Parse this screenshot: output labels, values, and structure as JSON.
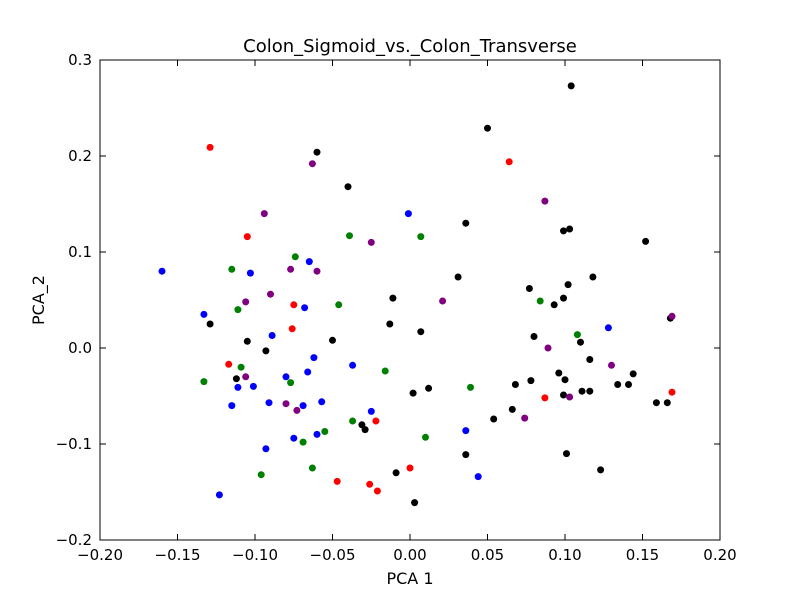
{
  "chart_data": {
    "type": "scatter",
    "title": "Colon_Sigmoid_vs._Colon_Transverse",
    "xlabel": "PCA 1",
    "ylabel": "PCA_2",
    "xlim": [
      -0.2,
      0.2
    ],
    "ylim": [
      -0.2,
      0.3
    ],
    "xticks": [
      "−0.20",
      "−0.15",
      "−0.10",
      "−0.05",
      "0.00",
      "0.05",
      "0.10",
      "0.15",
      "0.20"
    ],
    "xtick_values": [
      -0.2,
      -0.15,
      -0.1,
      -0.05,
      0.0,
      0.05,
      0.1,
      0.15,
      0.2
    ],
    "yticks": [
      "−0.2",
      "−0.1",
      "0.0",
      "0.1",
      "0.2",
      "0.3"
    ],
    "ytick_values": [
      -0.2,
      -0.1,
      0.0,
      0.1,
      0.2,
      0.3
    ],
    "grid": false,
    "series": [
      {
        "color": "#000000",
        "points": [
          [
            0.104,
            0.273
          ],
          [
            0.05,
            0.229
          ],
          [
            -0.06,
            0.204
          ],
          [
            -0.04,
            0.168
          ],
          [
            0.036,
            0.13
          ],
          [
            0.152,
            0.111
          ],
          [
            0.099,
            0.122
          ],
          [
            0.103,
            0.124
          ],
          [
            0.118,
            0.074
          ],
          [
            0.031,
            0.074
          ],
          [
            0.102,
            0.066
          ],
          [
            0.077,
            0.062
          ],
          [
            -0.011,
            0.052
          ],
          [
            0.099,
            0.052
          ],
          [
            0.093,
            0.045
          ],
          [
            0.168,
            0.031
          ],
          [
            -0.129,
            0.025
          ],
          [
            -0.013,
            0.025
          ],
          [
            0.007,
            0.017
          ],
          [
            0.08,
            0.012
          ],
          [
            -0.105,
            0.007
          ],
          [
            -0.05,
            0.008
          ],
          [
            0.11,
            0.006
          ],
          [
            -0.093,
            -0.003
          ],
          [
            0.116,
            -0.012
          ],
          [
            -0.112,
            -0.032
          ],
          [
            0.096,
            -0.026
          ],
          [
            0.144,
            -0.027
          ],
          [
            0.1,
            -0.033
          ],
          [
            0.078,
            -0.034
          ],
          [
            0.068,
            -0.038
          ],
          [
            0.134,
            -0.038
          ],
          [
            0.141,
            -0.038
          ],
          [
            0.012,
            -0.042
          ],
          [
            0.111,
            -0.045
          ],
          [
            0.116,
            -0.045
          ],
          [
            0.002,
            -0.047
          ],
          [
            0.099,
            -0.049
          ],
          [
            0.159,
            -0.057
          ],
          [
            0.166,
            -0.057
          ],
          [
            0.066,
            -0.064
          ],
          [
            0.054,
            -0.074
          ],
          [
            -0.031,
            -0.08
          ],
          [
            -0.029,
            -0.085
          ],
          [
            0.036,
            -0.111
          ],
          [
            0.101,
            -0.11
          ],
          [
            0.123,
            -0.127
          ],
          [
            -0.009,
            -0.13
          ],
          [
            0.003,
            -0.161
          ]
        ]
      },
      {
        "color": "#0000ff",
        "points": [
          [
            -0.16,
            0.08
          ],
          [
            -0.133,
            0.035
          ],
          [
            0.128,
            0.021
          ],
          [
            -0.001,
            0.14
          ],
          [
            -0.065,
            0.09
          ],
          [
            -0.103,
            0.078
          ],
          [
            -0.068,
            0.042
          ],
          [
            -0.089,
            0.013
          ],
          [
            -0.062,
            -0.01
          ],
          [
            -0.037,
            -0.018
          ],
          [
            -0.066,
            -0.025
          ],
          [
            -0.08,
            -0.03
          ],
          [
            -0.111,
            -0.041
          ],
          [
            -0.101,
            -0.04
          ],
          [
            -0.115,
            -0.06
          ],
          [
            -0.091,
            -0.057
          ],
          [
            -0.069,
            -0.06
          ],
          [
            -0.057,
            -0.056
          ],
          [
            -0.025,
            -0.066
          ],
          [
            -0.075,
            -0.094
          ],
          [
            -0.06,
            -0.09
          ],
          [
            0.036,
            -0.086
          ],
          [
            -0.093,
            -0.105
          ],
          [
            0.044,
            -0.134
          ],
          [
            -0.123,
            -0.153
          ]
        ]
      },
      {
        "color": "#ff0000",
        "points": [
          [
            -0.129,
            0.209
          ],
          [
            0.064,
            0.194
          ],
          [
            -0.105,
            0.116
          ],
          [
            -0.075,
            0.045
          ],
          [
            -0.076,
            0.02
          ],
          [
            -0.117,
            -0.017
          ],
          [
            0.087,
            -0.052
          ],
          [
            0.169,
            -0.046
          ],
          [
            -0.022,
            -0.076
          ],
          [
            0.0,
            -0.125
          ],
          [
            -0.047,
            -0.139
          ],
          [
            -0.026,
            -0.142
          ],
          [
            -0.021,
            -0.149
          ]
        ]
      },
      {
        "color": "#008000",
        "points": [
          [
            -0.074,
            0.095
          ],
          [
            -0.039,
            0.117
          ],
          [
            0.007,
            0.116
          ],
          [
            -0.115,
            0.082
          ],
          [
            -0.046,
            0.045
          ],
          [
            -0.111,
            0.04
          ],
          [
            0.084,
            0.049
          ],
          [
            0.108,
            0.014
          ],
          [
            -0.109,
            -0.02
          ],
          [
            -0.016,
            -0.024
          ],
          [
            -0.133,
            -0.035
          ],
          [
            -0.077,
            -0.036
          ],
          [
            0.039,
            -0.041
          ],
          [
            -0.069,
            -0.098
          ],
          [
            -0.055,
            -0.087
          ],
          [
            -0.037,
            -0.076
          ],
          [
            0.01,
            -0.093
          ],
          [
            -0.063,
            -0.125
          ],
          [
            -0.096,
            -0.132
          ]
        ]
      },
      {
        "color": "#800080",
        "points": [
          [
            -0.063,
            0.192
          ],
          [
            0.087,
            0.153
          ],
          [
            -0.094,
            0.14
          ],
          [
            -0.025,
            0.11
          ],
          [
            -0.077,
            0.082
          ],
          [
            -0.06,
            0.08
          ],
          [
            -0.09,
            0.056
          ],
          [
            -0.106,
            0.048
          ],
          [
            0.021,
            0.049
          ],
          [
            0.169,
            0.033
          ],
          [
            0.089,
            0.0
          ],
          [
            0.13,
            -0.018
          ],
          [
            -0.106,
            -0.03
          ],
          [
            -0.08,
            -0.058
          ],
          [
            -0.073,
            -0.065
          ],
          [
            0.074,
            -0.073
          ],
          [
            0.103,
            -0.051
          ]
        ]
      }
    ]
  }
}
